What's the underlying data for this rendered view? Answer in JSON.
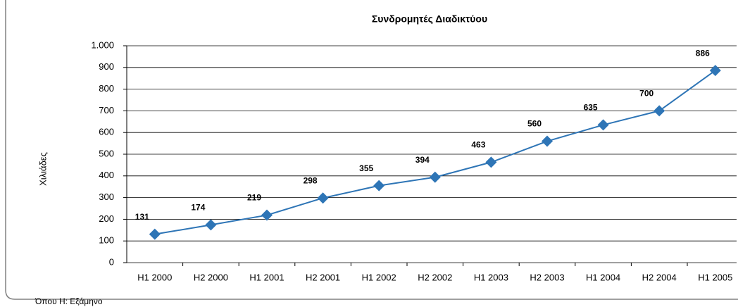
{
  "chart_data": {
    "type": "line",
    "title": "Συνδρομητές Διαδικτύου",
    "y_label": "Χιλιάδες",
    "footnote": "Όπου Η: Εξάμηνο",
    "categories": [
      "H1 2000",
      "H2 2000",
      "H1 2001",
      "H2 2001",
      "H1 2002",
      "H2 2002",
      "H1 2003",
      "H2 2003",
      "H1 2004",
      "H2 2004",
      "H1 2005"
    ],
    "values": [
      131,
      174,
      219,
      298,
      355,
      394,
      463,
      560,
      635,
      700,
      886
    ],
    "color": "#2e75b6",
    "ylim": [
      0,
      1000
    ],
    "yticks": [
      0,
      100,
      200,
      300,
      400,
      500,
      600,
      700,
      800,
      900,
      {
        "value": 1000,
        "label": "1.000"
      }
    ],
    "grid": true
  }
}
